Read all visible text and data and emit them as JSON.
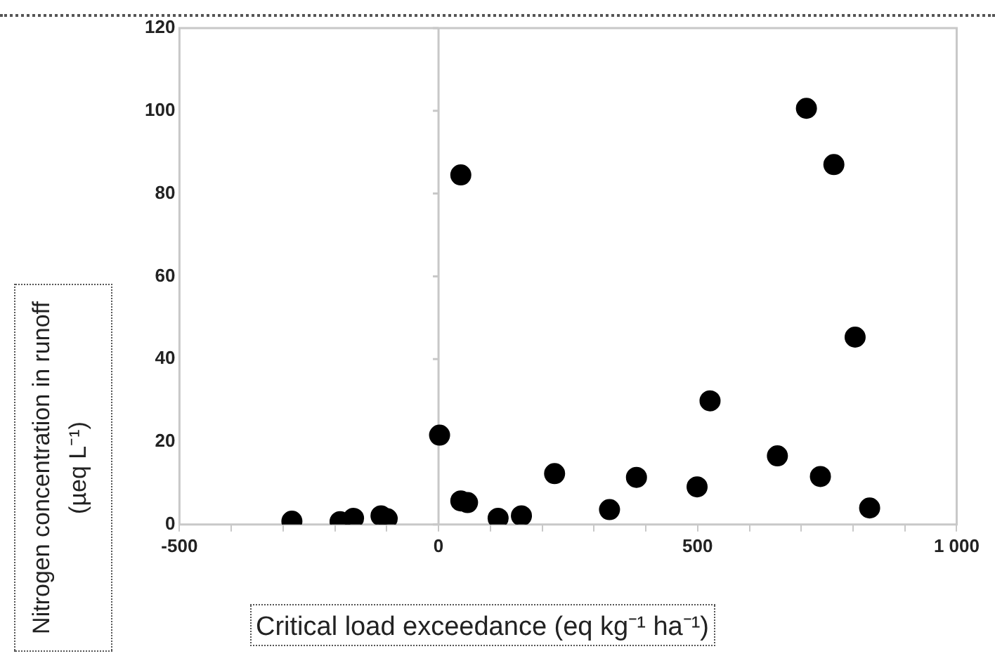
{
  "chart_data": {
    "type": "scatter",
    "xlabel": "Critical load exceedance (eq kg⁻¹ ha⁻¹)",
    "ylabel": "Nitrogen concentration in runoff (µeq L⁻¹)",
    "marker": "circle",
    "series": [
      {
        "color": "#000000",
        "x": [
          -283,
          -190,
          -164,
          -111,
          -99,
          2,
          43,
          43,
          56,
          115,
          160,
          224,
          330,
          382,
          499,
          524,
          654,
          710,
          737,
          763,
          804,
          832
        ],
        "values": [
          0.8,
          0.7,
          1.5,
          2.1,
          1.4,
          21.6,
          84.5,
          5.7,
          5.3,
          1.5,
          2.1,
          12.3,
          3.6,
          11.4,
          9.1,
          29.9,
          16.6,
          100.6,
          11.6,
          87,
          45.3,
          4.0
        ]
      }
    ],
    "xlim": [
      -500,
      1000
    ],
    "xticks": [
      -500,
      {
        "value": -400,
        "label": null
      },
      {
        "value": -300,
        "label": null
      },
      {
        "value": -200,
        "label": null
      },
      {
        "value": -100,
        "label": null
      },
      0,
      {
        "value": 100,
        "label": null
      },
      {
        "value": 200,
        "label": null
      },
      {
        "value": 300,
        "label": null
      },
      {
        "value": 400,
        "label": null
      },
      500,
      {
        "value": 600,
        "label": null
      },
      {
        "value": 700,
        "label": null
      },
      {
        "value": 800,
        "label": null
      },
      {
        "value": 900,
        "label": null
      },
      {
        "value": 1000,
        "label": "1 000"
      }
    ],
    "ylim": [
      0,
      120
    ],
    "yticks": [
      0,
      20,
      40,
      60,
      80,
      100,
      120
    ]
  }
}
